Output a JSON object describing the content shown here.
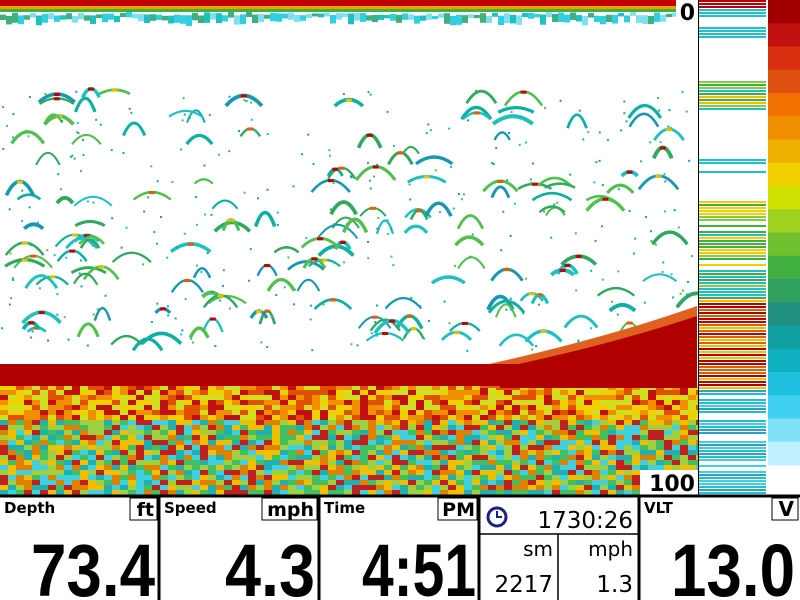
{
  "depth_scale": {
    "top": "0",
    "bottom": "100"
  },
  "panels": [
    {
      "label": "Depth",
      "unit": "ft",
      "value": "73.4"
    },
    {
      "label": "Speed",
      "unit": "mph",
      "value": "4.3"
    },
    {
      "label": "Time",
      "unit": "PM",
      "value": "4:51"
    },
    {
      "label": "VLT",
      "unit": "V",
      "value": "13.0"
    }
  ],
  "clock_panel": {
    "time": "1730:26",
    "units": [
      "sm",
      "mph"
    ],
    "values": [
      "2217",
      "1.3"
    ]
  }
}
